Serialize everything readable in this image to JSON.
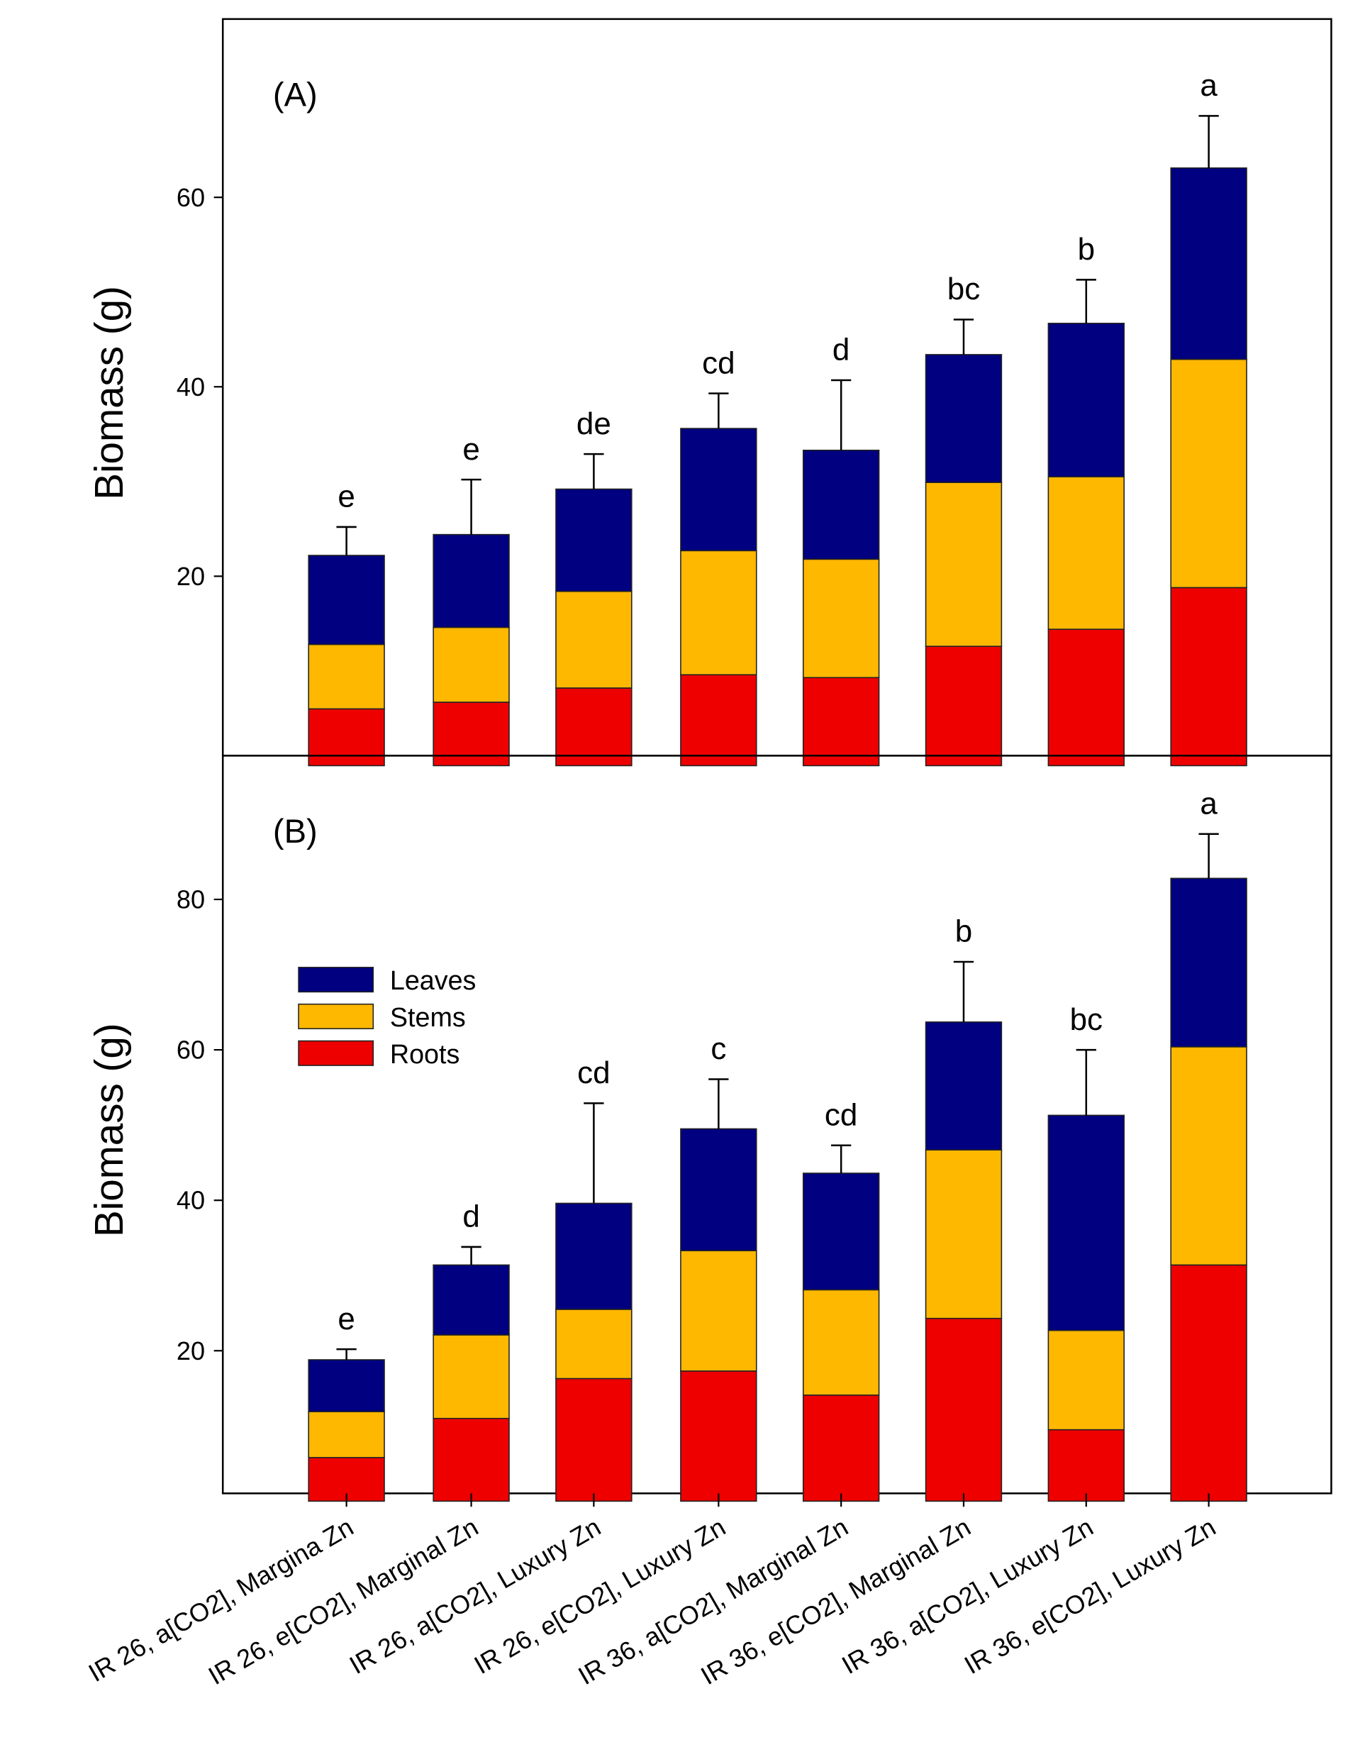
{
  "chart_data": {
    "type": "bar",
    "stacked": true,
    "categories": [
      "IR 26, a[CO2], Margina Zn",
      "IR 26, e[CO2], Marginal Zn",
      "IR 26, a[CO2], Luxury Zn",
      "IR 26, e[CO2], Luxury Zn",
      "IR 36, a[CO2], Marginal Zn",
      "IR 36, e[CO2], Marginal Zn",
      "IR 36, a[CO2], Luxury Zn",
      "IR 36, e[CO2], Luxury Zn"
    ],
    "legend": {
      "placement": "upper-left of panel B",
      "entries": [
        {
          "name": "Leaves",
          "color": "#000080"
        },
        {
          "name": "Stems",
          "color": "#FFB800"
        },
        {
          "name": "Roots",
          "color": "#EE0000"
        }
      ]
    },
    "panels": [
      {
        "label": "(A)",
        "ylabel": "Biomass (g)",
        "ylim": [
          0,
          77
        ],
        "yticks": [
          20,
          40,
          60
        ],
        "series": [
          {
            "name": "Roots",
            "values": [
              6.0,
              6.7,
              8.2,
              9.6,
              9.3,
              12.6,
              14.4,
              18.8
            ]
          },
          {
            "name": "Stems",
            "values": [
              6.8,
              7.9,
              10.2,
              13.1,
              12.5,
              17.3,
              16.1,
              24.1
            ]
          },
          {
            "name": "Leaves",
            "values": [
              9.4,
              9.8,
              10.8,
              12.9,
              11.5,
              13.5,
              16.2,
              20.2
            ]
          }
        ],
        "totals": [
          22.2,
          24.4,
          29.2,
          35.6,
          33.3,
          43.4,
          46.7,
          63.1
        ],
        "error_upper": [
          25.2,
          30.2,
          32.9,
          39.3,
          40.7,
          47.1,
          51.3,
          68.6
        ],
        "letters": [
          "e",
          "e",
          "de",
          "cd",
          "d",
          "bc",
          "b",
          "a"
        ]
      },
      {
        "label": "(B)",
        "ylabel": "Biomass (g)",
        "ylim": [
          0,
          98
        ],
        "yticks": [
          20,
          40,
          60,
          80
        ],
        "series": [
          {
            "name": "Roots",
            "values": [
              5.8,
              11.0,
              16.3,
              17.3,
              14.1,
              24.3,
              9.5,
              31.4
            ]
          },
          {
            "name": "Stems",
            "values": [
              6.1,
              11.1,
              9.2,
              16.0,
              14.0,
              22.4,
              13.2,
              29.0
            ]
          },
          {
            "name": "Leaves",
            "values": [
              6.9,
              9.3,
              14.1,
              16.2,
              15.5,
              17.0,
              28.6,
              22.4
            ]
          }
        ],
        "totals": [
          18.8,
          31.4,
          39.6,
          49.5,
          43.6,
          63.7,
          51.3,
          82.8
        ],
        "error_upper": [
          20.2,
          33.8,
          52.9,
          56.1,
          47.3,
          71.7,
          60.0,
          88.7
        ],
        "letters": [
          "e",
          "d",
          "cd",
          "c",
          "cd",
          "b",
          "bc",
          "a"
        ]
      }
    ]
  }
}
